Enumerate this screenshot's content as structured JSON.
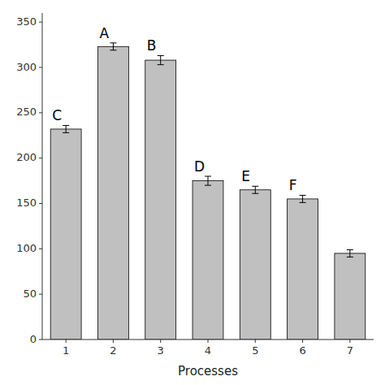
{
  "chart_data": {
    "type": "bar",
    "xlabel": "Processes",
    "categories": [
      "1",
      "2",
      "3",
      "4",
      "5",
      "6",
      "7"
    ],
    "values": [
      232,
      323,
      308,
      175,
      165,
      155,
      95
    ],
    "errors": [
      4,
      4,
      5,
      5,
      4,
      4,
      4
    ],
    "annotations": [
      "C",
      "A",
      "B",
      "D",
      "E",
      "F",
      null
    ],
    "color": "#C0C0C0",
    "ylim": [
      0,
      360
    ],
    "yticks": [
      0,
      50,
      100,
      150,
      200,
      250,
      300,
      350
    ],
    "grid": false
  }
}
